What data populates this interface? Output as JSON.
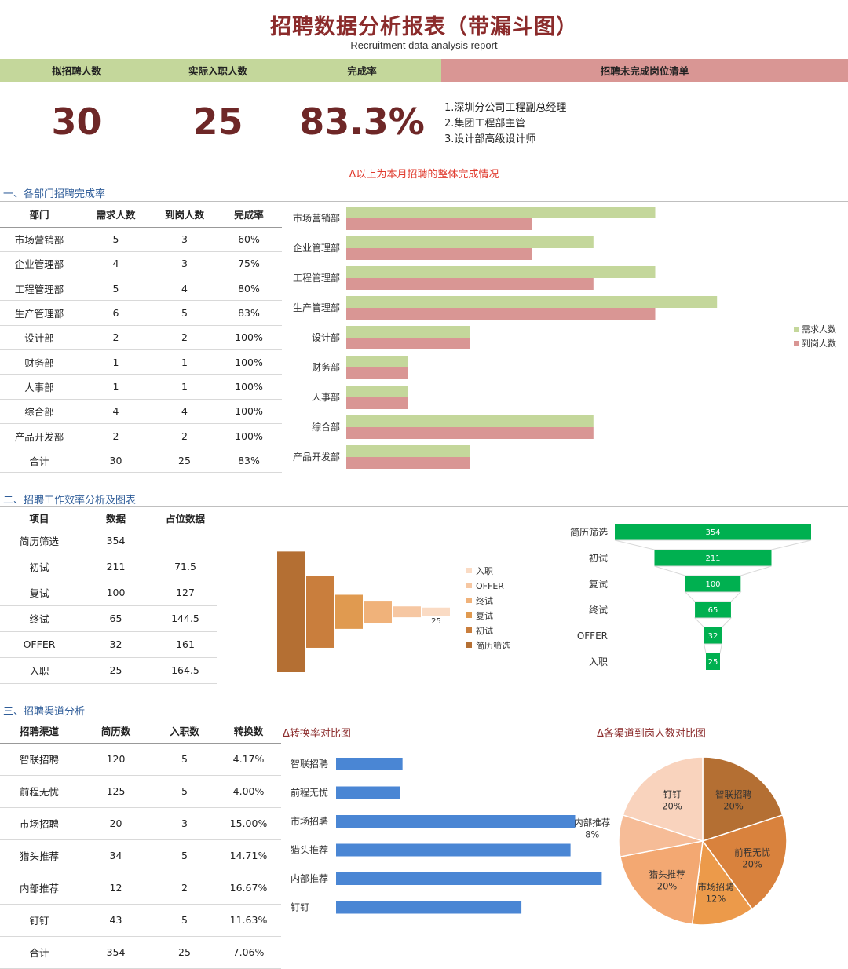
{
  "header": {
    "title": "招聘数据分析报表（带漏斗图）",
    "subtitle": "Recruitment data analysis report"
  },
  "kpi": {
    "planned_label": "拟招聘人数",
    "planned_value": "30",
    "actual_label": "实际入职人数",
    "actual_value": "25",
    "rate_label": "完成率",
    "rate_value": "83.3%",
    "todo_label": "招聘未完成岗位清单",
    "todo_items": [
      "1.深圳分公司工程副总经理",
      "2.集团工程部主管",
      "3.设计部高级设计师"
    ],
    "note": "Δ以上为本月招聘的整体完成情况"
  },
  "colors": {
    "green": "#c4d79b",
    "red": "#d99694",
    "title": "#8b2b2b",
    "funnel": "#00b050",
    "bar_blue": "#4a86d4"
  },
  "section1": {
    "title": "一、各部门招聘完成率",
    "headers": [
      "部门",
      "需求人数",
      "到岗人数",
      "完成率"
    ],
    "rows": [
      [
        "市场营销部",
        "5",
        "3",
        "60%"
      ],
      [
        "企业管理部",
        "4",
        "3",
        "75%"
      ],
      [
        "工程管理部",
        "5",
        "4",
        "80%"
      ],
      [
        "生产管理部",
        "6",
        "5",
        "83%"
      ],
      [
        "设计部",
        "2",
        "2",
        "100%"
      ],
      [
        "财务部",
        "1",
        "1",
        "100%"
      ],
      [
        "人事部",
        "1",
        "1",
        "100%"
      ],
      [
        "综合部",
        "4",
        "4",
        "100%"
      ],
      [
        "产品开发部",
        "2",
        "2",
        "100%"
      ],
      [
        "合计",
        "30",
        "25",
        "83%"
      ]
    ]
  },
  "section2": {
    "title": "二、招聘工作效率分析及图表",
    "headers": [
      "项目",
      "数据",
      "占位数据"
    ],
    "rows": [
      [
        "简历筛选",
        "354",
        ""
      ],
      [
        "初试",
        "211",
        "71.5"
      ],
      [
        "复试",
        "100",
        "127"
      ],
      [
        "终试",
        "65",
        "144.5"
      ],
      [
        "OFFER",
        "32",
        "161"
      ],
      [
        "入职",
        "25",
        "164.5"
      ]
    ]
  },
  "section3": {
    "title": "三、招聘渠道分析",
    "headers": [
      "招聘渠道",
      "简历数",
      "入职数",
      "转换数"
    ],
    "rows": [
      [
        "智联招聘",
        "120",
        "5",
        "4.17%"
      ],
      [
        "前程无忧",
        "125",
        "5",
        "4.00%"
      ],
      [
        "市场招聘",
        "20",
        "3",
        "15.00%"
      ],
      [
        "猎头推荐",
        "34",
        "5",
        "14.71%"
      ],
      [
        "内部推荐",
        "12",
        "2",
        "16.67%"
      ],
      [
        "钉钉",
        "43",
        "5",
        "11.63%"
      ],
      [
        "合计",
        "354",
        "25",
        "7.06%"
      ]
    ],
    "conv_title": "Δ转换率对比图",
    "pie_title": "Δ各渠道到岗人数对比图"
  },
  "chart_data": [
    {
      "type": "bar",
      "orientation": "horizontal",
      "categories": [
        "市场营销部",
        "企业管理部",
        "工程管理部",
        "生产管理部",
        "设计部",
        "财务部",
        "人事部",
        "综合部",
        "产品开发部"
      ],
      "series": [
        {
          "name": "需求人数",
          "values": [
            5,
            4,
            5,
            6,
            2,
            1,
            1,
            4,
            2
          ],
          "color": "#c4d79b"
        },
        {
          "name": "到岗人数",
          "values": [
            3,
            3,
            4,
            5,
            2,
            1,
            1,
            4,
            2
          ],
          "color": "#d99694"
        }
      ],
      "xlim": [
        0,
        8
      ],
      "legend": "right"
    },
    {
      "type": "bar",
      "subtype": "waterfall",
      "categories": [
        "简历筛选",
        "初试",
        "复试",
        "终试",
        "OFFER",
        "入职"
      ],
      "values": [
        354,
        211,
        100,
        65,
        32,
        25
      ],
      "offset": [
        0,
        71.5,
        127,
        144.5,
        161,
        164.5
      ],
      "colors": [
        "#b46f33",
        "#c97e3d",
        "#e09a50",
        "#f0b27a",
        "#f6c7a2",
        "#fadbc4"
      ],
      "data_labels": [
        {
          "category": "入职",
          "text": "25"
        }
      ],
      "legend": "right"
    },
    {
      "type": "bar",
      "subtype": "funnel",
      "categories": [
        "简历筛选",
        "初试",
        "复试",
        "终试",
        "OFFER",
        "入职"
      ],
      "values": [
        354,
        211,
        100,
        65,
        32,
        25
      ],
      "color": "#00b050"
    },
    {
      "type": "bar",
      "orientation": "horizontal",
      "title": "Δ转换率对比图",
      "categories": [
        "智联招聘",
        "前程无忧",
        "市场招聘",
        "猎头推荐",
        "内部推荐",
        "钉钉"
      ],
      "values": [
        4.17,
        4.0,
        15.0,
        14.71,
        16.67,
        11.63
      ],
      "xlim": [
        0,
        20
      ],
      "color": "#4a86d4"
    },
    {
      "type": "pie",
      "title": "Δ各渠道到岗人数对比图",
      "slices": [
        {
          "label": "智联招聘",
          "value": 20,
          "text": "20%",
          "color": "#b46f33"
        },
        {
          "label": "前程无忧",
          "value": 20,
          "text": "20%",
          "color": "#d9823d"
        },
        {
          "label": "市场招聘",
          "value": 12,
          "text": "12%",
          "color": "#ec9a4a"
        },
        {
          "label": "猎头推荐",
          "value": 20,
          "text": "20%",
          "color": "#f3a872"
        },
        {
          "label": "内部推荐",
          "value": 8,
          "text": "8%",
          "color": "#f6bc97"
        },
        {
          "label": "钉钉",
          "value": 20,
          "text": "20%",
          "color": "#f9d3bd"
        }
      ]
    }
  ]
}
